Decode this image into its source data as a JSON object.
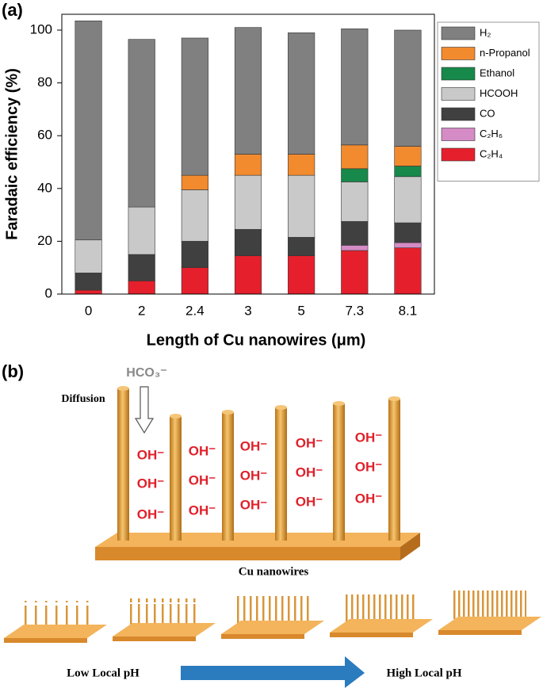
{
  "chart_data": {
    "type": "stacked_bar",
    "xlabel": "Length of Cu nanowires (μm)",
    "ylabel": "Faradaic efficiency (%)",
    "categories": [
      "0",
      "2",
      "2.4",
      "3",
      "5",
      "7.3",
      "8.1"
    ],
    "series": [
      {
        "name": "C₂H₄",
        "color": "#e5202c",
        "values": [
          1.5,
          5,
          10,
          14.5,
          14.5,
          16.5,
          17.5
        ]
      },
      {
        "name": "C₂H₆",
        "color": "#d58bc6",
        "values": [
          0,
          0,
          0,
          0,
          0,
          2,
          2
        ]
      },
      {
        "name": "CO",
        "color": "#404040",
        "values": [
          6.5,
          10,
          10,
          10,
          7,
          9,
          7.5
        ]
      },
      {
        "name": "HCOOH",
        "color": "#c9c9c9",
        "values": [
          12.5,
          18,
          19.5,
          20.5,
          23.5,
          15,
          17.5
        ]
      },
      {
        "name": "Ethanol",
        "color": "#17894a",
        "values": [
          0,
          0,
          0,
          0,
          0,
          5,
          4
        ]
      },
      {
        "name": "n-Propanol",
        "color": "#f28a2e",
        "values": [
          0,
          0,
          5.5,
          8,
          8,
          9,
          7.5
        ]
      },
      {
        "name": "H₂",
        "color": "#808080",
        "values": [
          83,
          63.5,
          52,
          48,
          46,
          44,
          44
        ]
      }
    ],
    "ylim": [
      0,
      106
    ],
    "yticks": [
      0,
      20,
      40,
      60,
      80,
      100
    ],
    "grid": false,
    "legend": "right"
  },
  "panel_labels": [
    "(a)",
    "(b)"
  ],
  "diagram": {
    "bicarbonate": "HCO₃⁻",
    "diffusion": "Diffusion",
    "hydroxide_labels": [
      "OH⁻",
      "OH⁻",
      "OH⁻",
      "OH⁻",
      "OH⁻",
      "OH⁻",
      "OH⁻",
      "OH⁻",
      "OH⁻",
      "OH⁻",
      "OH⁻",
      "OH⁻",
      "OH⁻",
      "OH⁻",
      "OH⁻"
    ],
    "base_label": "Cu nanowires",
    "low_ph": "Low Local pH",
    "high_ph": "High Local pH"
  }
}
